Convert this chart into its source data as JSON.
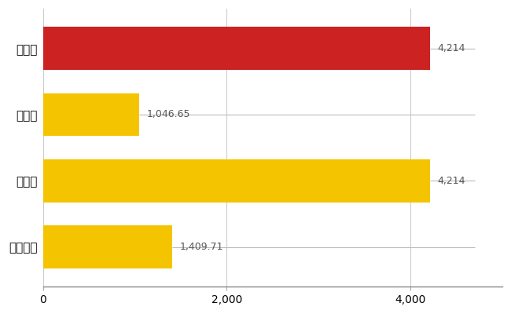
{
  "categories": [
    "佐賀市",
    "県平均",
    "県最大",
    "全国平均"
  ],
  "values": [
    4214,
    1046.65,
    4214,
    1409.71
  ],
  "labels": [
    "4,214",
    "1,046.65",
    "4,214",
    "1,409.71"
  ],
  "bar_colors": [
    "#cc2222",
    "#f5c400",
    "#f5c400",
    "#f5c400"
  ],
  "background_color": "#ffffff",
  "grid_color": "#cccccc",
  "label_color": "#555555",
  "line_color": "#bbbbbb",
  "xlim": [
    0,
    5000
  ],
  "xticks": [
    0,
    2000,
    4000
  ],
  "bar_height": 0.65,
  "figsize": [
    6.5,
    4.0
  ],
  "dpi": 100
}
